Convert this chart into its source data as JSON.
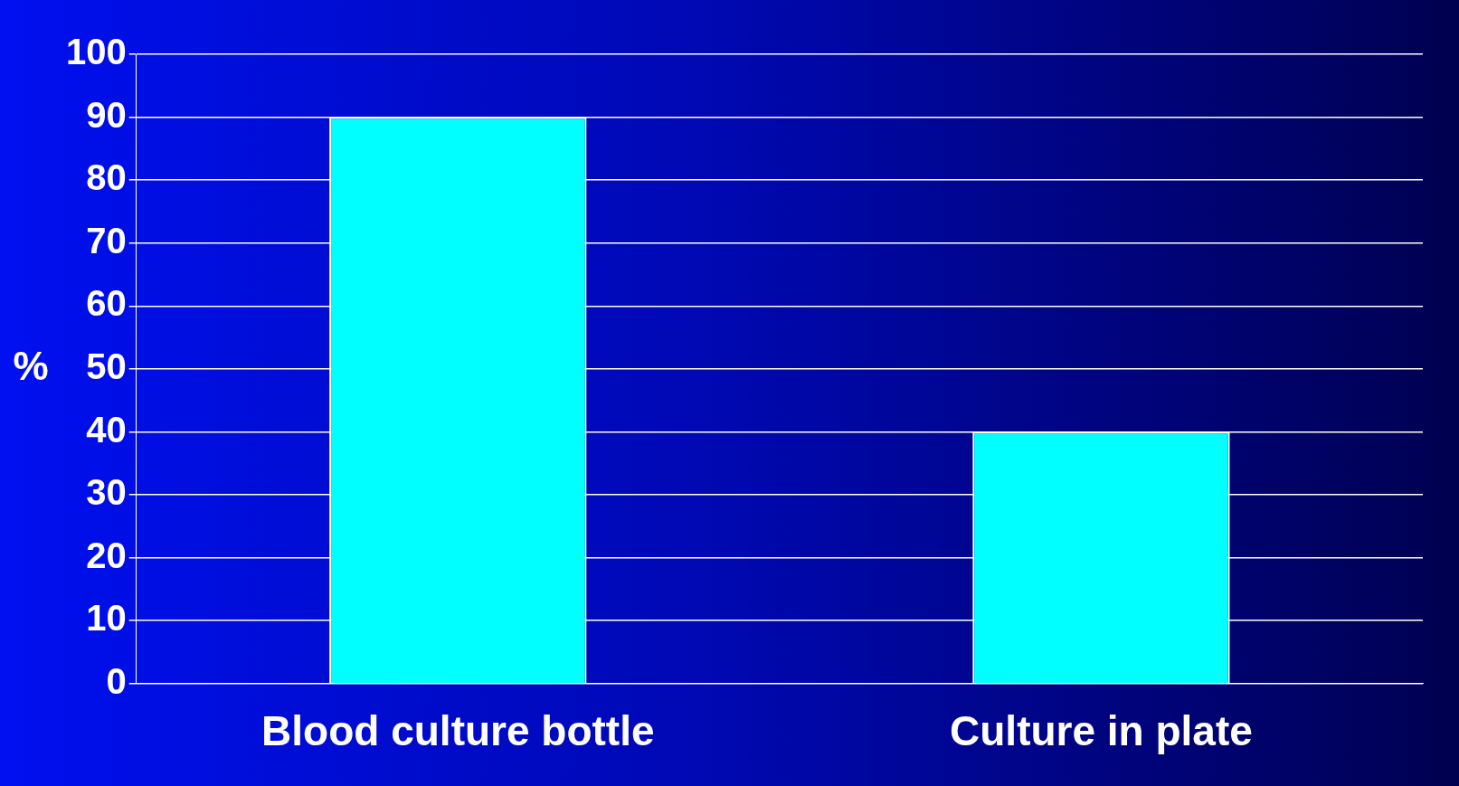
{
  "chart_data": {
    "type": "bar",
    "ylabel": "%",
    "categories": [
      "Blood culture bottle",
      "Culture in plate"
    ],
    "values": [
      90,
      40
    ],
    "color": "#00ffff",
    "ylim": [
      0,
      100
    ],
    "yticks": [
      0,
      10,
      20,
      30,
      40,
      50,
      60,
      70,
      80,
      90,
      100
    ],
    "grid": "y",
    "legend": false
  }
}
